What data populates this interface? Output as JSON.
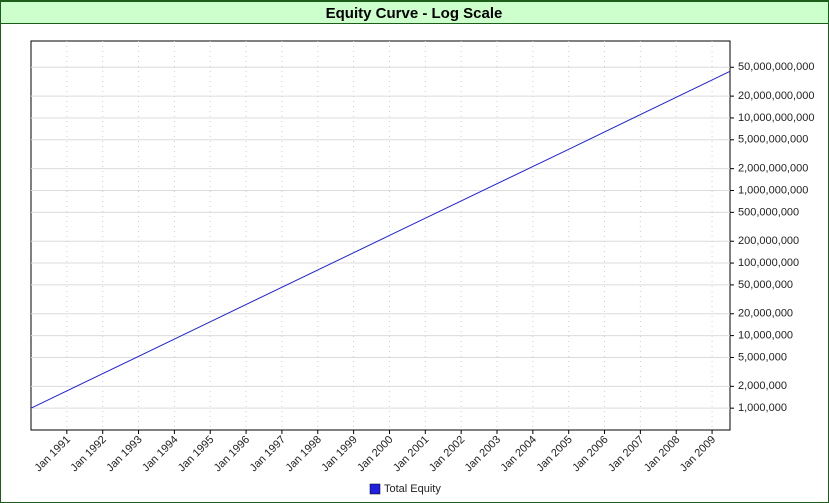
{
  "chart_data": {
    "type": "line",
    "title": "Equity Curve - Log Scale",
    "x": [
      1990,
      1995,
      2000,
      2005,
      2009.5
    ],
    "series": [
      {
        "name": "Total Equity",
        "color": "#2020e0",
        "values": [
          1000000,
          15500000,
          240000000,
          3700000000,
          44000000000
        ]
      }
    ],
    "xlim": [
      1990,
      2009.5
    ],
    "xticks": [
      {
        "value": 1991,
        "label": "Jan 1991"
      },
      {
        "value": 1992,
        "label": "Jan 1992"
      },
      {
        "value": 1993,
        "label": "Jan 1993"
      },
      {
        "value": 1994,
        "label": "Jan 1994"
      },
      {
        "value": 1995,
        "label": "Jan 1995"
      },
      {
        "value": 1996,
        "label": "Jan 1996"
      },
      {
        "value": 1997,
        "label": "Jan 1997"
      },
      {
        "value": 1998,
        "label": "Jan 1998"
      },
      {
        "value": 1999,
        "label": "Jan 1999"
      },
      {
        "value": 2000,
        "label": "Jan 2000"
      },
      {
        "value": 2001,
        "label": "Jan 2001"
      },
      {
        "value": 2002,
        "label": "Jan 2002"
      },
      {
        "value": 2003,
        "label": "Jan 2003"
      },
      {
        "value": 2004,
        "label": "Jan 2004"
      },
      {
        "value": 2005,
        "label": "Jan 2005"
      },
      {
        "value": 2006,
        "label": "Jan 2006"
      },
      {
        "value": 2007,
        "label": "Jan 2007"
      },
      {
        "value": 2008,
        "label": "Jan 2008"
      },
      {
        "value": 2009,
        "label": "Jan 2009"
      }
    ],
    "ylim": [
      500000,
      115000000000
    ],
    "log_scale": true,
    "y_axis_side": "right",
    "yticks": [
      {
        "value": 1000000,
        "label": "1,000,000"
      },
      {
        "value": 2000000,
        "label": "2,000,000"
      },
      {
        "value": 5000000,
        "label": "5,000,000"
      },
      {
        "value": 10000000,
        "label": "10,000,000"
      },
      {
        "value": 20000000,
        "label": "20,000,000"
      },
      {
        "value": 50000000,
        "label": "50,000,000"
      },
      {
        "value": 100000000,
        "label": "100,000,000"
      },
      {
        "value": 200000000,
        "label": "200,000,000"
      },
      {
        "value": 500000000,
        "label": "500,000,000"
      },
      {
        "value": 1000000000,
        "label": "1,000,000,000"
      },
      {
        "value": 2000000000,
        "label": "2,000,000,000"
      },
      {
        "value": 5000000000,
        "label": "5,000,000,000"
      },
      {
        "value": 10000000000,
        "label": "10,000,000,000"
      },
      {
        "value": 20000000000,
        "label": "20,000,000,000"
      },
      {
        "value": 50000000000,
        "label": "50,000,000,000"
      }
    ],
    "grid": true,
    "legend": "bottom"
  }
}
